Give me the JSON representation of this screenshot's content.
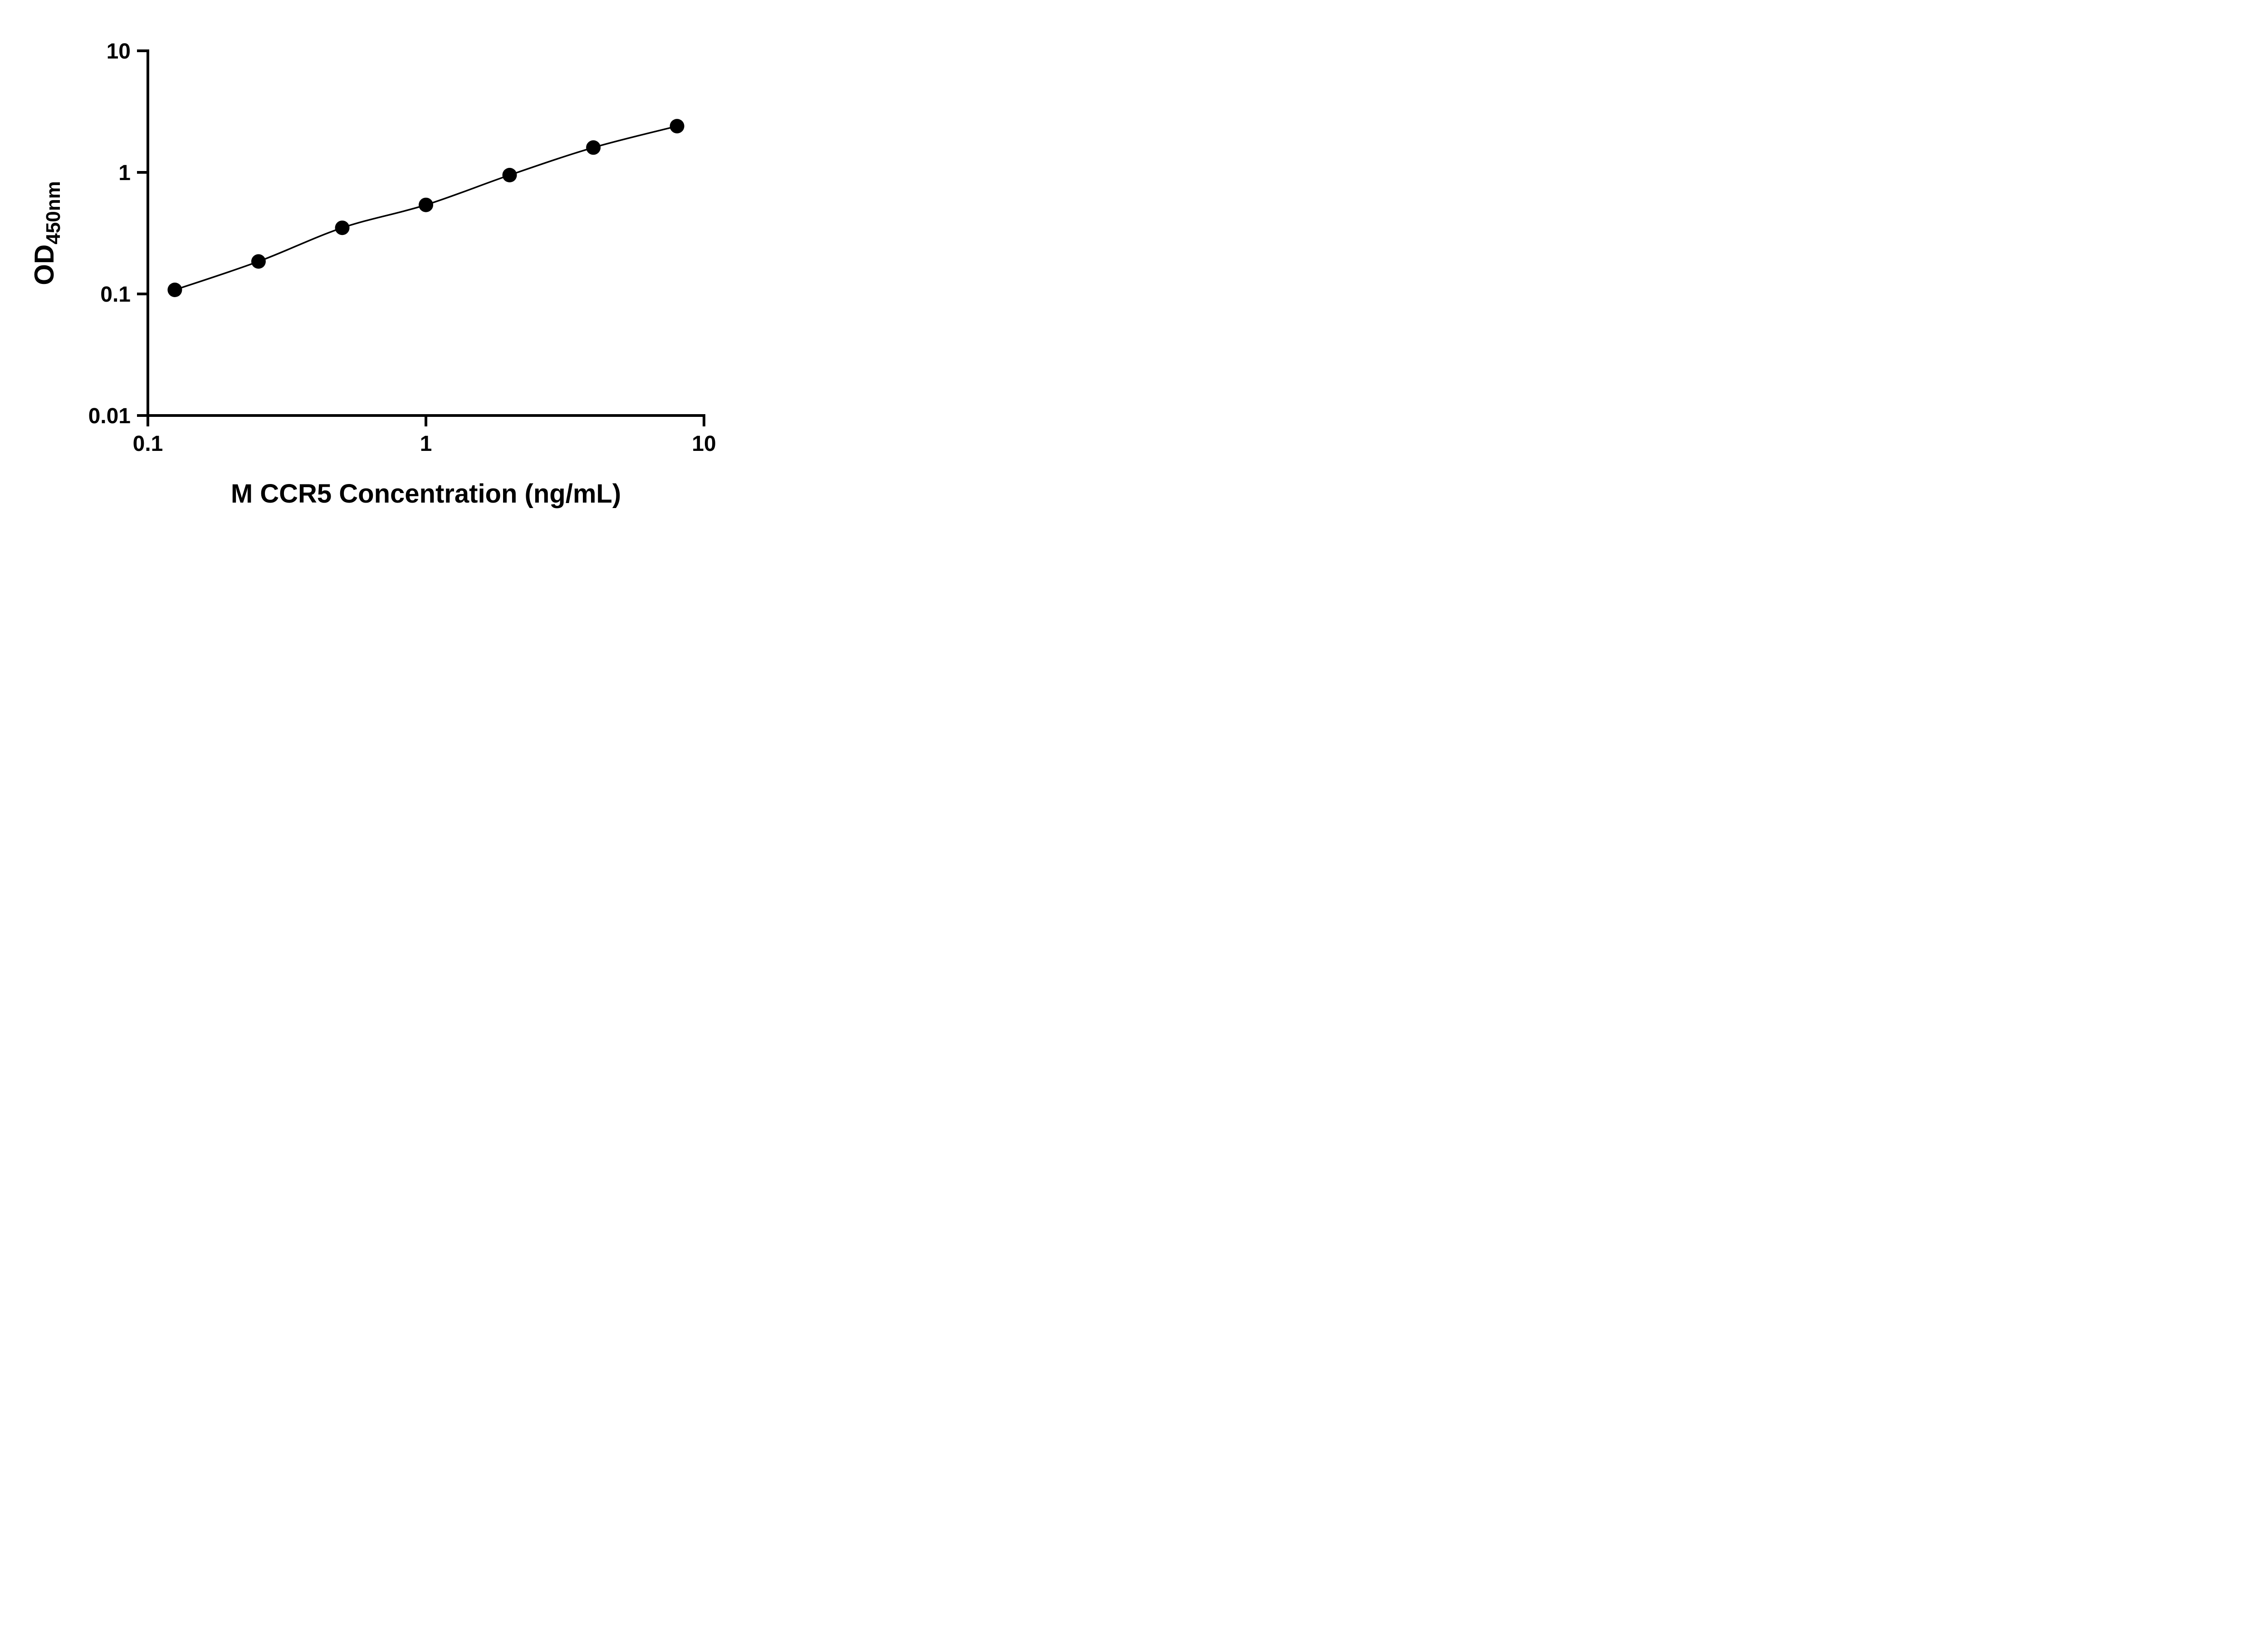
{
  "chart_data": {
    "type": "scatter",
    "title": "",
    "xlabel": "M CCR5 Concentration (ng/mL)",
    "ylabel_main": "OD",
    "ylabel_sub": "450nm",
    "x_scale": "log",
    "y_scale": "log",
    "xlim": [
      0.1,
      10
    ],
    "ylim": [
      0.01,
      10
    ],
    "grid": false,
    "legend": null,
    "line_color": "#000000",
    "marker_color": "#000000",
    "background": "#ffffff",
    "x": [
      0.125,
      0.25,
      0.5,
      1,
      2,
      4,
      8
    ],
    "y": [
      0.108,
      0.185,
      0.35,
      0.54,
      0.95,
      1.6,
      2.4
    ],
    "x_ticks": [
      {
        "value": 0.1,
        "label": "0.1"
      },
      {
        "value": 1,
        "label": "1"
      },
      {
        "value": 10,
        "label": "10"
      }
    ],
    "y_ticks": [
      {
        "value": 0.01,
        "label": "0.01"
      },
      {
        "value": 0.1,
        "label": "0.1"
      },
      {
        "value": 1,
        "label": "1"
      },
      {
        "value": 10,
        "label": "10"
      }
    ]
  }
}
